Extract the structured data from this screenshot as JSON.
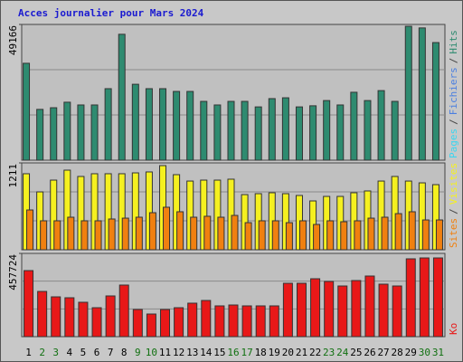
{
  "chart_data": {
    "type": "bar",
    "title": "Acces journalier pour Mars 2024",
    "categories": [
      "1",
      "2",
      "3",
      "4",
      "5",
      "6",
      "7",
      "8",
      "9",
      "10",
      "11",
      "12",
      "13",
      "14",
      "15",
      "16",
      "17",
      "18",
      "19",
      "20",
      "21",
      "22",
      "23",
      "24",
      "25",
      "26",
      "27",
      "28",
      "29",
      "30",
      "31"
    ],
    "weekend": [
      false,
      true,
      true,
      false,
      false,
      false,
      false,
      false,
      true,
      true,
      false,
      false,
      false,
      false,
      false,
      true,
      true,
      false,
      false,
      false,
      false,
      false,
      true,
      true,
      false,
      false,
      false,
      false,
      false,
      true,
      true
    ],
    "weekday_color": "#000000",
    "weekend_color": "#107010",
    "legend_separator": "/",
    "panels": [
      {
        "ylim": [
          0,
          49166
        ],
        "yticks": [
          49166
        ],
        "grid": true,
        "series": [
          {
            "name": "Pages",
            "color": "#3ad6f0",
            "values": [
              34100,
              17400,
              18000,
              20000,
              19000,
              19000,
              24900,
              44600,
              26500,
              24900,
              24900,
              23900,
              23900,
              20300,
              19000,
              20300,
              20300,
              18300,
              21300,
              21600,
              18300,
              18700,
              20600,
              19000,
              23600,
              20600,
              24200,
              20300,
              47500,
              46900,
              41600
            ]
          },
          {
            "name": "Fichiers",
            "color": "#4a7fe0",
            "values": [
              null,
              null,
              null,
              null,
              null,
              null,
              null,
              null,
              null,
              null,
              null,
              null,
              null,
              null,
              null,
              null,
              null,
              null,
              null,
              null,
              null,
              null,
              null,
              null,
              null,
              null,
              null,
              null,
              null,
              null,
              null
            ]
          },
          {
            "name": "Hits",
            "color": "#2e8b70",
            "values": [
              35100,
              18400,
              19000,
              21000,
              20000,
              20000,
              25900,
              45600,
              27500,
              25900,
              25900,
              24900,
              24900,
              21300,
              20000,
              21300,
              21300,
              19300,
              22300,
              22600,
              19300,
              19700,
              21600,
              20000,
              24600,
              21600,
              25200,
              21300,
              48500,
              47900,
              42600
            ]
          }
        ]
      },
      {
        "ylim": [
          0,
          1211
        ],
        "yticks": [
          1211
        ],
        "grid": true,
        "series": [
          {
            "name": "Sites",
            "color": "#f08010",
            "values": [
              555,
              404,
              404,
              454,
              404,
              404,
              429,
              441,
              454,
              517,
              593,
              530,
              454,
              467,
              454,
              479,
              378,
              404,
              404,
              378,
              404,
              353,
              404,
              391,
              404,
              441,
              454,
              504,
              530,
              416,
              416
            ]
          },
          {
            "name": "Visites",
            "color": "#f5f020",
            "values": [
              1060,
              807,
              971,
              1110,
              1022,
              1060,
              1060,
              1060,
              1072,
              1085,
              1173,
              1047,
              958,
              971,
              971,
              984,
              769,
              782,
              795,
              782,
              757,
              681,
              744,
              744,
              795,
              820,
              958,
              1022,
              958,
              933,
              908
            ]
          }
        ]
      },
      {
        "ylim": [
          0,
          457724
        ],
        "yticks": [
          457724
        ],
        "grid": true,
        "series": [
          {
            "name": "Ko",
            "color": "#e81818",
            "values": [
              363200,
              248700,
              218900,
              213900,
              189100,
              159200,
              223900,
              283600,
              149300,
              124400,
              149300,
              159200,
              184100,
              199000,
              169200,
              174100,
              169200,
              169200,
              169200,
              293500,
              293500,
              318400,
              303500,
              278600,
              308500,
              333300,
              288600,
              278600,
              427900,
              432800,
              432800
            ]
          }
        ]
      }
    ]
  }
}
